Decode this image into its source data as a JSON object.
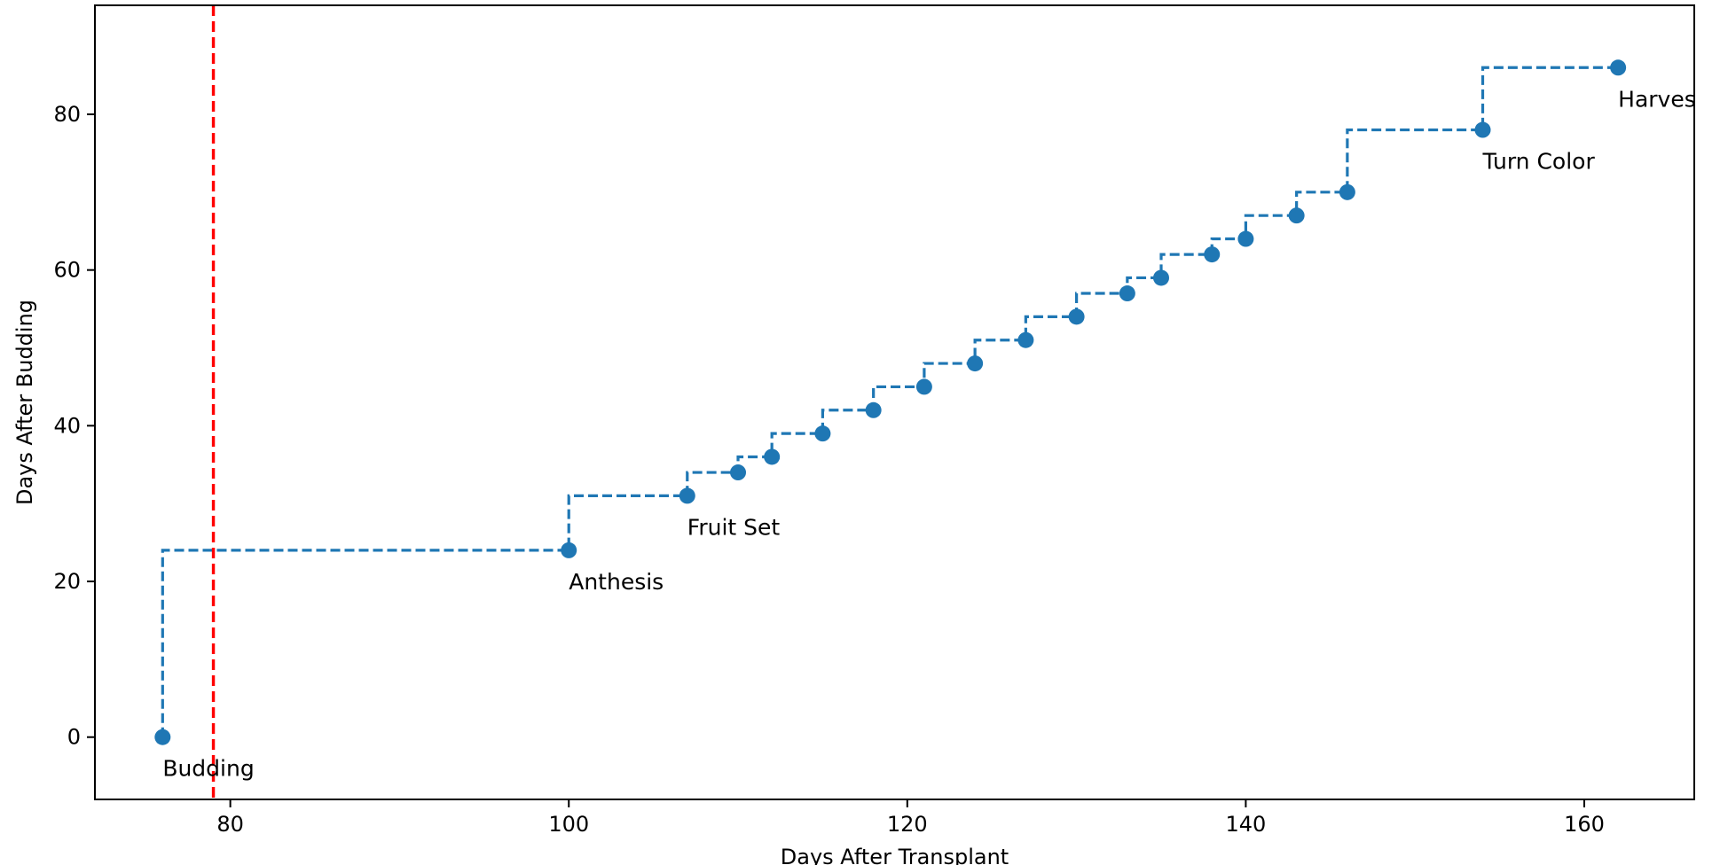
{
  "chart_data": {
    "type": "line",
    "title": "",
    "xlabel": "Days After Transplant",
    "ylabel": "Days After Budding",
    "xlim": [
      72,
      166.5
    ],
    "ylim": [
      -8,
      94
    ],
    "xticks": [
      80,
      100,
      120,
      140,
      160
    ],
    "yticks": [
      0,
      20,
      40,
      60,
      80
    ],
    "xtick_labels": [
      "80",
      "100",
      "120",
      "140",
      "160"
    ],
    "ytick_labels": [
      "0",
      "20",
      "40",
      "60",
      "80"
    ],
    "grid": false,
    "legend": "none",
    "series": [
      {
        "style": "step-post-dashed-with-markers",
        "color": "#1f77b4",
        "x": [
          76,
          100,
          107,
          110,
          112,
          115,
          118,
          121,
          124,
          127,
          130,
          133,
          135,
          138,
          140,
          143,
          146,
          154,
          162
        ],
        "y": [
          0,
          24,
          31,
          34,
          36,
          39,
          42,
          45,
          48,
          51,
          54,
          57,
          59,
          62,
          64,
          67,
          70,
          78,
          86
        ]
      }
    ],
    "vertical_line": {
      "x": 79,
      "color": "#ff0000",
      "style": "dashed"
    },
    "annotations": [
      {
        "text": "Budding",
        "x": 76,
        "y": 0
      },
      {
        "text": "Anthesis",
        "x": 100,
        "y": 24
      },
      {
        "text": "Fruit Set",
        "x": 107,
        "y": 31
      },
      {
        "text": "Turn Color",
        "x": 154,
        "y": 78
      },
      {
        "text": "Harvest",
        "x": 162,
        "y": 86
      }
    ]
  }
}
